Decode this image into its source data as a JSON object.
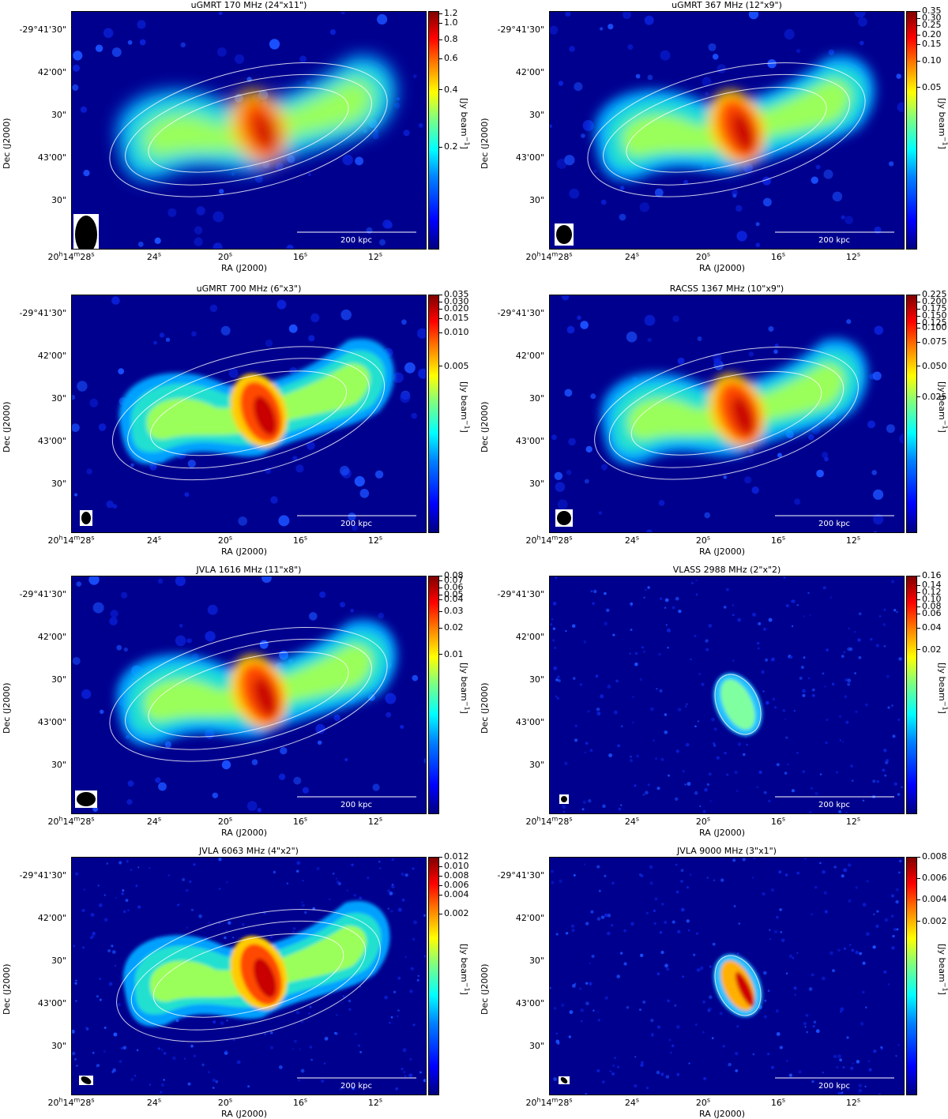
{
  "shared": {
    "ra_axis_label": "RA (J2000)",
    "dec_axis_label": "Dec (J2000)",
    "cbar_unit": "[Jy beam",
    "cbar_unit_sup": "−1",
    "cbar_unit_close": "]",
    "scale_bar_label": "200 kpc",
    "dec_ticks": [
      "-29°41'30\"",
      "42'00\"",
      "30\"",
      "43'00\"",
      "30\""
    ],
    "ra_ticks": [
      {
        "main": "20",
        "h": "h",
        "m_val": "14",
        "m": "m",
        "s_val": "28",
        "s": "s"
      },
      {
        "main": "24",
        "s": "s"
      },
      {
        "main": "20",
        "s": "s"
      },
      {
        "main": "16",
        "s": "s"
      },
      {
        "main": "12",
        "s": "s"
      }
    ]
  },
  "panels": [
    {
      "title": "uGMRT 170 MHz (24\"x11\")",
      "cbar_ticks": [
        "1.2",
        "1.0",
        "0.8",
        "0.6",
        "0.4",
        "0.2"
      ]
    },
    {
      "title": "uGMRT 367 MHz (12\"x9\")",
      "cbar_ticks": [
        "0.35",
        "0.30",
        "0.25",
        "0.20",
        "0.15",
        "0.10",
        "0.05"
      ]
    },
    {
      "title": "uGMRT 700 MHz (6\"x3\")",
      "cbar_ticks": [
        "0.035",
        "0.030",
        "0.020",
        "0.015",
        "0.010",
        "0.005"
      ]
    },
    {
      "title": "RACSS 1367 MHz (10\"x9\")",
      "cbar_ticks": [
        "0.225",
        "0.200",
        "0.175",
        "0.150",
        "0.125",
        "0.100",
        "0.075",
        "0.050",
        "0.025"
      ]
    },
    {
      "title": "JVLA 1616 MHz (11\"x8\")",
      "cbar_ticks": [
        "0.08",
        "0.07",
        "0.06",
        "0.05",
        "0.04",
        "0.03",
        "0.02",
        "0.01"
      ]
    },
    {
      "title": "VLASS 2988 MHz (2\"x\"2)",
      "cbar_ticks": [
        "0.16",
        "0.14",
        "0.12",
        "0.10",
        "0.08",
        "0.06",
        "0.04",
        "0.02"
      ]
    },
    {
      "title": "JVLA 6063 MHz (4\"x2\")",
      "cbar_ticks": [
        "0.012",
        "0.010",
        "0.008",
        "0.006",
        "0.004",
        "0.002"
      ]
    },
    {
      "title": "JVLA 9000 MHz (3\"x1\")",
      "cbar_ticks": [
        "0.008",
        "0.006",
        "0.004",
        "0.002"
      ]
    }
  ]
}
